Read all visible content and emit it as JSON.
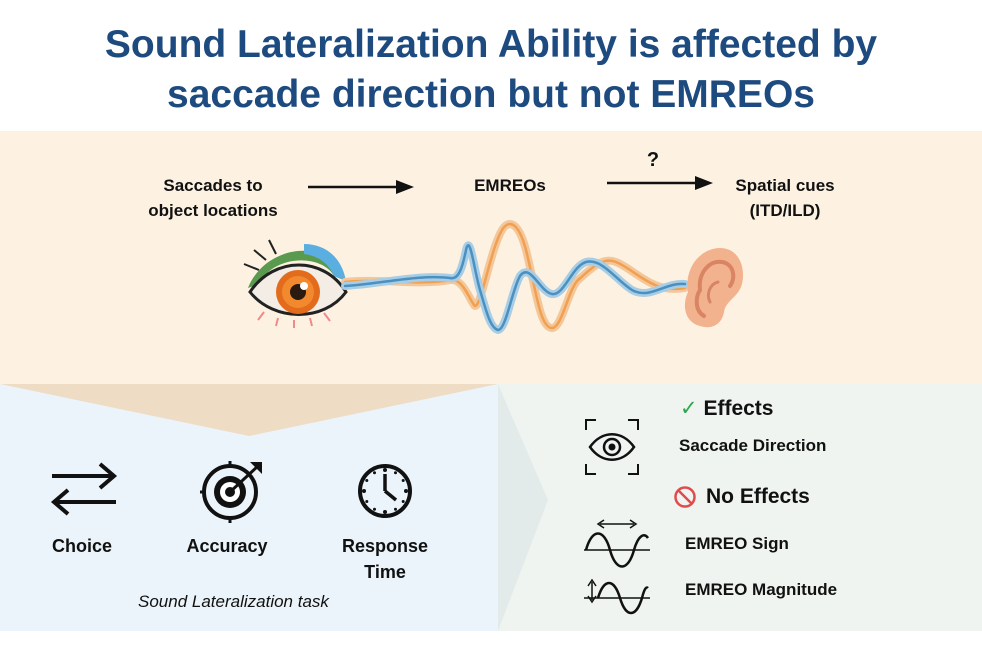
{
  "title": {
    "line1": "Sound Lateralization Ability is affected by",
    "line2": "saccade direction but not EMREOs"
  },
  "flow": {
    "saccades_line1": "Saccades to",
    "saccades_line2": "object locations",
    "emreos": "EMREOs",
    "question": "?",
    "spatial_line1": "Spatial cues",
    "spatial_line2": "(ITD/ILD)"
  },
  "waveform_colors": {
    "orange": "#f0a050",
    "blue": "#4a90c0"
  },
  "task": {
    "choice": "Choice",
    "accuracy": "Accuracy",
    "response_line1": "Response",
    "response_line2": "Time",
    "caption": "Sound Lateralization task"
  },
  "results": {
    "effects_mark": "✓",
    "effects_heading": "Effects",
    "saccade_direction": "Saccade Direction",
    "no_effects_heading": "No Effects",
    "emreo_sign": "EMREO Sign",
    "emreo_magnitude": "EMREO Magnitude"
  },
  "icons": [
    "eye-illustration",
    "ear-illustration",
    "swap-arrows-icon",
    "target-icon",
    "clock-icon",
    "eye-scan-icon",
    "no-entry-icon",
    "sine-wave-sign-icon",
    "sine-wave-magnitude-icon"
  ],
  "colors": {
    "title": "#1d4a7f",
    "check": "#2aa84a",
    "no_entry": "#e04b4b"
  }
}
